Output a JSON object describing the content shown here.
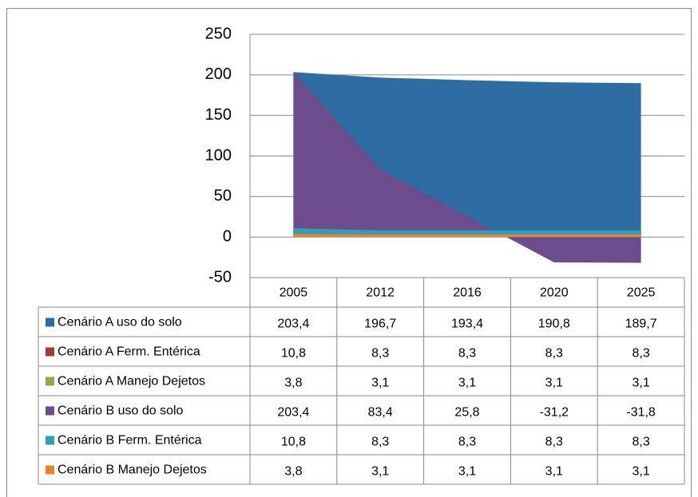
{
  "chart_data": {
    "type": "area",
    "categories": [
      "2005",
      "2012",
      "2016",
      "2020",
      "2025"
    ],
    "series": [
      {
        "name": "Cenário A uso do solo",
        "color": "#2e6da4",
        "values": [
          203.4,
          196.7,
          193.4,
          190.8,
          189.7
        ],
        "value_labels": [
          "203,4",
          "196,7",
          "193,4",
          "190,8",
          "189,7"
        ]
      },
      {
        "name": "Cenário A Ferm. Entérica",
        "color": "#a33b39",
        "values": [
          10.8,
          8.3,
          8.3,
          8.3,
          8.3
        ],
        "value_labels": [
          "10,8",
          "8,3",
          "8,3",
          "8,3",
          "8,3"
        ]
      },
      {
        "name": "Cenário A Manejo Dejetos",
        "color": "#8aae44",
        "values": [
          3.8,
          3.1,
          3.1,
          3.1,
          3.1
        ],
        "value_labels": [
          "3,8",
          "3,1",
          "3,1",
          "3,1",
          "3,1"
        ]
      },
      {
        "name": "Cenário B uso do solo",
        "color": "#6d4c8d",
        "values": [
          203.4,
          83.4,
          25.8,
          -31.2,
          -31.8
        ],
        "value_labels": [
          "203,4",
          "83,4",
          "25,8",
          "-31,2",
          "-31,8"
        ]
      },
      {
        "name": "Cenário B Ferm. Entérica",
        "color": "#2f9fb5",
        "values": [
          10.8,
          8.3,
          8.3,
          8.3,
          8.3
        ],
        "value_labels": [
          "10,8",
          "8,3",
          "8,3",
          "8,3",
          "8,3"
        ]
      },
      {
        "name": "Cenário B Manejo Dejetos",
        "color": "#e8822f",
        "values": [
          3.8,
          3.1,
          3.1,
          3.1,
          3.1
        ],
        "value_labels": [
          "3,8",
          "3,1",
          "3,1",
          "3,1",
          "3,1"
        ]
      }
    ],
    "ylim": [
      -50,
      250
    ],
    "yticks": [
      -50,
      0,
      50,
      100,
      150,
      200,
      250
    ],
    "grid": true
  }
}
